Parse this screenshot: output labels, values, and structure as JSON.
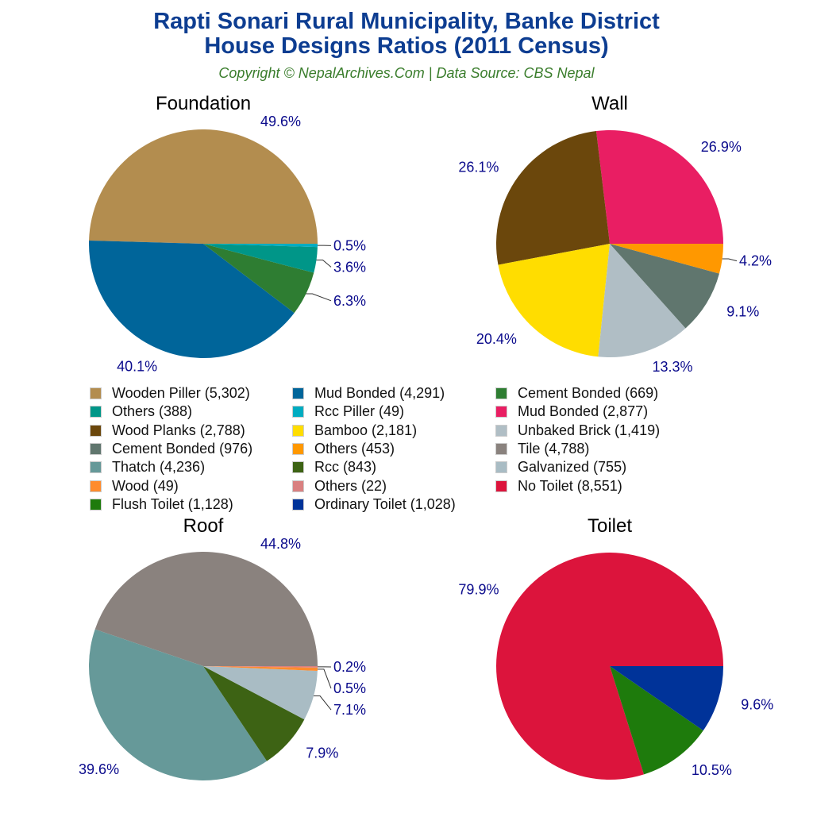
{
  "title_line1": "Rapti Sonari Rural Municipality, Banke District",
  "title_line2": "House Designs Ratios (2011 Census)",
  "subtitle": "Copyright © NepalArchives.Com | Data Source: CBS Nepal",
  "chart_data": [
    {
      "type": "pie",
      "title": "Foundation",
      "start": "east",
      "direction": "counterclockwise",
      "slices": [
        {
          "label": "Wooden Piller",
          "value": 5302,
          "percent": "49.6%",
          "color": "#b38d4f"
        },
        {
          "label": "Mud Bonded",
          "value": 4291,
          "percent": "40.1%",
          "color": "#00659a"
        },
        {
          "label": "Cement Bonded",
          "value": 669,
          "percent": "6.3%",
          "color": "#2e7d32"
        },
        {
          "label": "Others",
          "value": 388,
          "percent": "3.6%",
          "color": "#009688"
        },
        {
          "label": "Rcc Piller",
          "value": 49,
          "percent": "0.5%",
          "color": "#00acc1"
        }
      ]
    },
    {
      "type": "pie",
      "title": "Wall",
      "start": "east",
      "direction": "counterclockwise",
      "slices": [
        {
          "label": "Mud Bonded",
          "value": 2877,
          "percent": "26.9%",
          "color": "#e91e63"
        },
        {
          "label": "Wood Planks",
          "value": 2788,
          "percent": "26.1%",
          "color": "#6b470c"
        },
        {
          "label": "Bamboo",
          "value": 2181,
          "percent": "20.4%",
          "color": "#ffdd00"
        },
        {
          "label": "Unbaked Brick",
          "value": 1419,
          "percent": "13.3%",
          "color": "#b0bec5"
        },
        {
          "label": "Cement Bonded",
          "value": 976,
          "percent": "9.1%",
          "color": "#60766e"
        },
        {
          "label": "Others",
          "value": 453,
          "percent": "4.2%",
          "color": "#ff9800"
        }
      ]
    },
    {
      "type": "pie",
      "title": "Roof",
      "start": "east",
      "direction": "counterclockwise",
      "slices": [
        {
          "label": "Tile",
          "value": 4788,
          "percent": "44.8%",
          "color": "#8a827e"
        },
        {
          "label": "Thatch",
          "value": 4236,
          "percent": "39.6%",
          "color": "#669999"
        },
        {
          "label": "Rcc",
          "value": 843,
          "percent": "7.9%",
          "color": "#3d6314"
        },
        {
          "label": "Galvanized",
          "value": 755,
          "percent": "7.1%",
          "color": "#a9bcc4"
        },
        {
          "label": "Wood",
          "value": 49,
          "percent": "0.5%",
          "color": "#ff8c2e"
        },
        {
          "label": "Others",
          "value": 22,
          "percent": "0.2%",
          "color": "#d98080"
        }
      ]
    },
    {
      "type": "pie",
      "title": "Toilet",
      "start": "east",
      "direction": "counterclockwise",
      "slices": [
        {
          "label": "No Toilet",
          "value": 8551,
          "percent": "79.9%",
          "color": "#dc143c"
        },
        {
          "label": "Flush Toilet",
          "value": 1128,
          "percent": "10.5%",
          "color": "#1e7b0c"
        },
        {
          "label": "Ordinary Toilet",
          "value": 1028,
          "percent": "9.6%",
          "color": "#003399"
        }
      ]
    }
  ],
  "legend": [
    {
      "text": "Wooden Piller (5,302)",
      "color": "#b38d4f"
    },
    {
      "text": "Mud Bonded (4,291)",
      "color": "#00659a"
    },
    {
      "text": "Cement Bonded (669)",
      "color": "#2e7d32"
    },
    {
      "text": "Others (388)",
      "color": "#009688"
    },
    {
      "text": "Rcc Piller (49)",
      "color": "#00acc1"
    },
    {
      "text": "Mud Bonded (2,877)",
      "color": "#e91e63"
    },
    {
      "text": "Wood Planks (2,788)",
      "color": "#6b470c"
    },
    {
      "text": "Bamboo (2,181)",
      "color": "#ffdd00"
    },
    {
      "text": "Unbaked Brick (1,419)",
      "color": "#b0bec5"
    },
    {
      "text": "Cement Bonded (976)",
      "color": "#60766e"
    },
    {
      "text": "Others (453)",
      "color": "#ff9800"
    },
    {
      "text": "Tile (4,788)",
      "color": "#8a827e"
    },
    {
      "text": "Thatch (4,236)",
      "color": "#669999"
    },
    {
      "text": "Rcc (843)",
      "color": "#3d6314"
    },
    {
      "text": "Galvanized (755)",
      "color": "#a9bcc4"
    },
    {
      "text": "Wood (49)",
      "color": "#ff8c2e"
    },
    {
      "text": "Others (22)",
      "color": "#d98080"
    },
    {
      "text": "No Toilet (8,551)",
      "color": "#dc143c"
    },
    {
      "text": "Flush Toilet (1,128)",
      "color": "#1e7b0c"
    },
    {
      "text": "Ordinary Toilet (1,028)",
      "color": "#003399"
    }
  ]
}
